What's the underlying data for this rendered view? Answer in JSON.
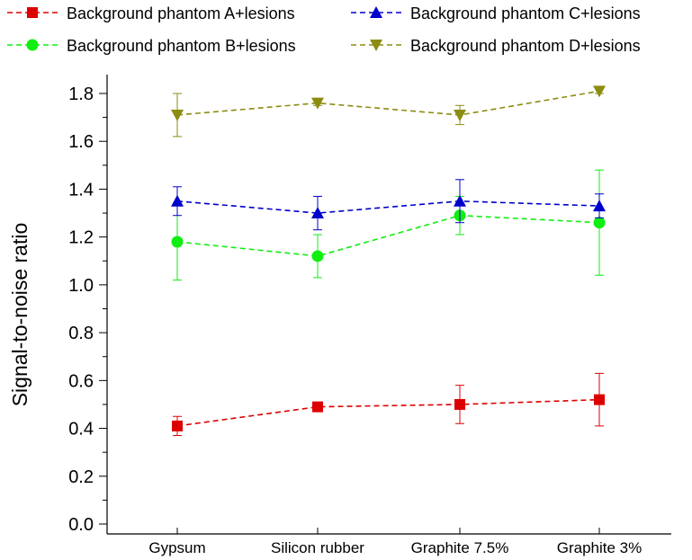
{
  "chart_data": {
    "type": "line",
    "title": "",
    "xlabel": "",
    "ylabel": "Signal-to-noise ratio",
    "ylim": [
      0,
      1.9
    ],
    "yticks": [
      0.0,
      0.2,
      0.4,
      0.6,
      0.8,
      1.0,
      1.2,
      1.4,
      1.6,
      1.8
    ],
    "ytick_labels": [
      "0.0",
      "0.2",
      "0.4",
      "0.6",
      "0.8",
      "1.0",
      "1.2",
      "1.4",
      "1.6",
      "1.8"
    ],
    "categories": [
      "Gypsum",
      "Silicon rubber",
      "Graphite 7.5%",
      "Graphite 3%"
    ],
    "legend_position": "top",
    "series": [
      {
        "name": "Background phantom A+lesions",
        "color": "#dd0000",
        "marker": "square",
        "values": [
          0.41,
          0.49,
          0.5,
          0.52
        ],
        "err": [
          0.04,
          0.01,
          0.08,
          0.11
        ]
      },
      {
        "name": "Background phantom B+lesions",
        "color": "#11ee11",
        "marker": "circle",
        "values": [
          1.18,
          1.12,
          1.29,
          1.26
        ],
        "err": [
          0.16,
          0.09,
          0.08,
          0.22
        ]
      },
      {
        "name": "Background phantom C+lesions",
        "color": "#0000cc",
        "marker": "triangle-up",
        "values": [
          1.35,
          1.3,
          1.35,
          1.33
        ],
        "err": [
          0.06,
          0.07,
          0.09,
          0.05
        ]
      },
      {
        "name": "Background phantom D+lesions",
        "color": "#8c8c10",
        "marker": "triangle-down",
        "values": [
          1.71,
          1.76,
          1.71,
          1.81
        ],
        "err": [
          0.09,
          0.01,
          0.04,
          0.01
        ]
      }
    ]
  }
}
